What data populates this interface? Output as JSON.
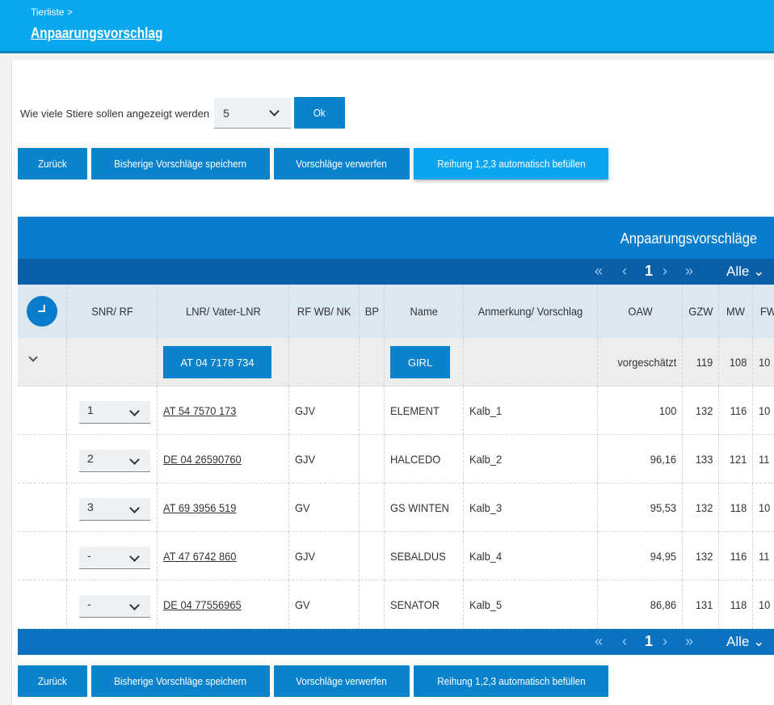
{
  "header": {
    "breadcrumb": "Tierliste >",
    "title": "Anpaarungsvorschlag"
  },
  "count_control": {
    "label": "Wie viele Stiere sollen angezeigt werden",
    "selected": "5",
    "ok_label": "Ok"
  },
  "actions": {
    "back": "Zurück",
    "save": "Bisherige Vorschläge speichern",
    "discard": "Vorschläge verwerfen",
    "autofill": "Reihung 1,2,3 automatisch befüllen"
  },
  "table": {
    "title": "Anpaarungsvorschläge",
    "pager": {
      "page": "1",
      "first": "«",
      "prev": "‹",
      "next": "›",
      "last": "»",
      "size": "Alle"
    },
    "columns": [
      "SNR/ RF",
      "LNR/ Vater-LNR",
      "RF WB/ NK",
      "BP",
      "Name",
      "Anmerkung/ Vorschlag",
      "OAW",
      "GZW",
      "MW",
      "FW"
    ],
    "summary_row": {
      "lnr": "AT 04 7178 734",
      "name": "GIRL",
      "oaw": "vorgeschätzt",
      "gzw": "119",
      "mw": "108",
      "fw": "10"
    },
    "rows": [
      {
        "rf": "1",
        "lnr": "AT 54 7570 173",
        "wbnk": "GJV",
        "bp": "",
        "name": "ELEMENT",
        "note": "Kalb_1",
        "oaw": "100",
        "gzw": "132",
        "mw": "116",
        "fw": "10"
      },
      {
        "rf": "2",
        "lnr": "DE 04 26590760",
        "wbnk": "GJV",
        "bp": "",
        "name": "HALCEDO",
        "note": "Kalb_2",
        "oaw": "96,16",
        "gzw": "133",
        "mw": "121",
        "fw": "11"
      },
      {
        "rf": "3",
        "lnr": "AT 69 3956 519",
        "wbnk": "GV",
        "bp": "",
        "name": "GS WINTEN",
        "note": "Kalb_3",
        "oaw": "95,53",
        "gzw": "132",
        "mw": "118",
        "fw": "10"
      },
      {
        "rf": "-",
        "lnr": "AT 47 6742 860",
        "wbnk": "GJV",
        "bp": "",
        "name": "SEBALDUS",
        "note": "Kalb_4",
        "oaw": "94,95",
        "gzw": "132",
        "mw": "116",
        "fw": "11"
      },
      {
        "rf": "-",
        "lnr": "DE 04 77556965",
        "wbnk": "GV",
        "bp": "",
        "name": "SENATOR",
        "note": "Kalb_5",
        "oaw": "86,86",
        "gzw": "131",
        "mw": "118",
        "fw": "10"
      }
    ]
  }
}
